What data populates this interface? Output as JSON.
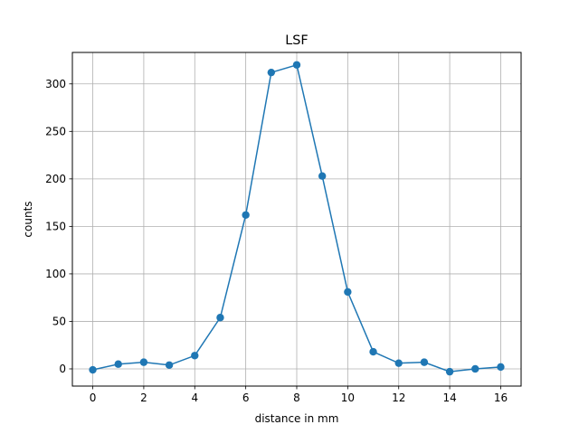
{
  "chart_data": {
    "type": "line",
    "title": "LSF",
    "xlabel": "distance in mm",
    "ylabel": "counts",
    "xlim": [
      -0.8,
      16.8
    ],
    "ylim": [
      -18.1,
      333.1
    ],
    "x_ticks": [
      0,
      2,
      4,
      6,
      8,
      10,
      12,
      14,
      16
    ],
    "y_ticks": [
      0,
      50,
      100,
      150,
      200,
      250,
      300
    ],
    "grid": true,
    "markers": true,
    "series": [
      {
        "color": "#1f77b4",
        "x": [
          0,
          1,
          2,
          3,
          4,
          5,
          6,
          7,
          8,
          9,
          10,
          11,
          12,
          13,
          14,
          15,
          16
        ],
        "y": [
          -1,
          5,
          7,
          4,
          14,
          54,
          162,
          312,
          320,
          203,
          81,
          18,
          6,
          7,
          -3,
          0,
          2
        ]
      }
    ]
  }
}
